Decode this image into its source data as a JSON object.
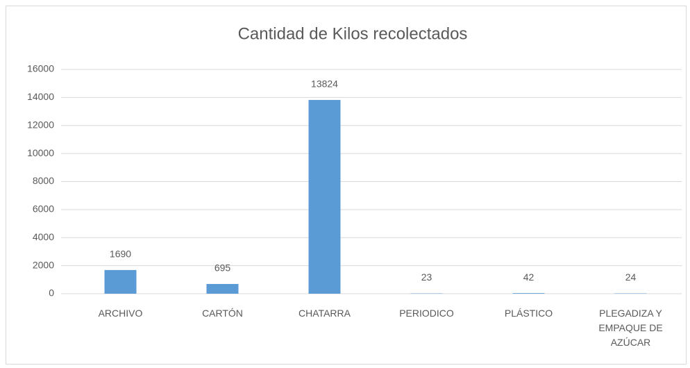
{
  "chart_data": {
    "type": "bar",
    "title": "Cantidad de Kilos recolectados",
    "categories": [
      "ARCHIVO",
      "CARTÓN",
      "CHATARRA",
      "PERIODICO",
      "PLÁSTICO",
      "PLEGADIZA Y EMPAQUE DE AZÚCAR"
    ],
    "values": [
      1690,
      695,
      13824,
      23,
      42,
      24
    ],
    "color": "#5b9bd5",
    "ylim": [
      0,
      16000
    ],
    "yticks": [
      0,
      2000,
      4000,
      6000,
      8000,
      10000,
      12000,
      14000,
      16000
    ],
    "grid": true
  }
}
